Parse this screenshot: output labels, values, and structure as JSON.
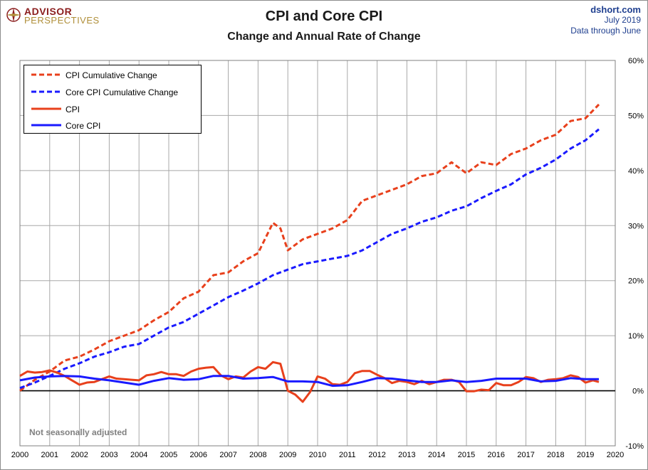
{
  "branding": {
    "logo_line1": "ADVISOR",
    "logo_line2": "PERSPECTIVES"
  },
  "header": {
    "source": "dshort.com",
    "date": "July 2019",
    "data_through": "Data through June"
  },
  "note": "Not seasonally adjusted",
  "chart_data": {
    "type": "line",
    "title": "CPI and Core CPI",
    "subtitle": "Change and Annual Rate of Change",
    "xlabel": "",
    "ylabel": "",
    "xlim": [
      2000,
      2020
    ],
    "ylim": [
      -10,
      60
    ],
    "x_ticks": [
      "2000",
      "2001",
      "2002",
      "2003",
      "2004",
      "2005",
      "2006",
      "2007",
      "2008",
      "2009",
      "2010",
      "2011",
      "2012",
      "2013",
      "2014",
      "2015",
      "2016",
      "2017",
      "2018",
      "2019",
      "2020"
    ],
    "y_ticks": [
      "60%",
      "50%",
      "40%",
      "30%",
      "20%",
      "10%",
      "0%",
      "-10%"
    ],
    "grid": true,
    "legend_position": "top-left",
    "series": [
      {
        "name": "CPI Cumulative Change",
        "color": "#e8401c",
        "style": "dashed",
        "x": [
          2000.0,
          2000.5,
          2001.0,
          2001.5,
          2002.0,
          2002.5,
          2003.0,
          2003.5,
          2004.0,
          2004.5,
          2005.0,
          2005.5,
          2006.0,
          2006.5,
          2007.0,
          2007.5,
          2008.0,
          2008.5,
          2008.75,
          2009.0,
          2009.5,
          2010.0,
          2010.5,
          2011.0,
          2011.5,
          2012.0,
          2012.5,
          2013.0,
          2013.5,
          2014.0,
          2014.5,
          2015.0,
          2015.5,
          2016.0,
          2016.5,
          2017.0,
          2017.5,
          2018.0,
          2018.5,
          2019.0,
          2019.45
        ],
        "y": [
          0.0,
          2.0,
          3.5,
          5.5,
          6.2,
          7.5,
          9.0,
          10.0,
          11.0,
          12.8,
          14.3,
          16.8,
          18.0,
          21.0,
          21.5,
          23.5,
          25.0,
          30.5,
          29.5,
          25.5,
          27.5,
          28.5,
          29.5,
          31.0,
          34.5,
          35.5,
          36.5,
          37.5,
          39.0,
          39.5,
          41.5,
          39.5,
          41.5,
          41.0,
          43.0,
          44.0,
          45.5,
          46.5,
          49.0,
          49.5,
          52.0
        ]
      },
      {
        "name": "Core CPI Cumulative Change",
        "color": "#1a1aff",
        "style": "dashed",
        "x": [
          2000.0,
          2000.5,
          2001.0,
          2001.5,
          2002.0,
          2002.5,
          2003.0,
          2003.5,
          2004.0,
          2004.5,
          2005.0,
          2005.5,
          2006.0,
          2006.5,
          2007.0,
          2007.5,
          2008.0,
          2008.5,
          2009.0,
          2009.5,
          2010.0,
          2010.5,
          2011.0,
          2011.5,
          2012.0,
          2012.5,
          2013.0,
          2013.5,
          2014.0,
          2014.5,
          2015.0,
          2015.5,
          2016.0,
          2016.5,
          2017.0,
          2017.5,
          2018.0,
          2018.5,
          2019.0,
          2019.45
        ],
        "y": [
          0.5,
          1.5,
          2.7,
          4.0,
          5.0,
          6.2,
          7.0,
          8.0,
          8.5,
          10.0,
          11.5,
          12.5,
          14.0,
          15.5,
          17.0,
          18.2,
          19.5,
          21.0,
          22.0,
          23.0,
          23.5,
          24.0,
          24.5,
          25.5,
          27.0,
          28.5,
          29.5,
          30.7,
          31.5,
          32.7,
          33.5,
          35.0,
          36.3,
          37.5,
          39.3,
          40.5,
          42.0,
          44.0,
          45.5,
          47.5
        ]
      },
      {
        "name": "CPI",
        "color": "#e8401c",
        "style": "solid",
        "x": [
          2000.0,
          2000.25,
          2000.5,
          2000.75,
          2001.0,
          2001.25,
          2001.5,
          2001.75,
          2002.0,
          2002.25,
          2002.5,
          2002.75,
          2003.0,
          2003.25,
          2003.5,
          2003.75,
          2004.0,
          2004.25,
          2004.5,
          2004.75,
          2005.0,
          2005.25,
          2005.5,
          2005.75,
          2006.0,
          2006.25,
          2006.5,
          2006.75,
          2007.0,
          2007.25,
          2007.5,
          2007.75,
          2008.0,
          2008.25,
          2008.5,
          2008.75,
          2009.0,
          2009.25,
          2009.5,
          2009.75,
          2010.0,
          2010.25,
          2010.5,
          2010.75,
          2011.0,
          2011.25,
          2011.5,
          2011.75,
          2012.0,
          2012.25,
          2012.5,
          2012.75,
          2013.0,
          2013.25,
          2013.5,
          2013.75,
          2014.0,
          2014.25,
          2014.5,
          2014.75,
          2015.0,
          2015.25,
          2015.5,
          2015.75,
          2016.0,
          2016.25,
          2016.5,
          2016.75,
          2017.0,
          2017.25,
          2017.5,
          2017.75,
          2018.0,
          2018.25,
          2018.5,
          2018.75,
          2019.0,
          2019.25,
          2019.45
        ],
        "y": [
          2.7,
          3.5,
          3.3,
          3.4,
          3.7,
          3.3,
          2.7,
          1.9,
          1.1,
          1.5,
          1.6,
          2.1,
          2.6,
          2.2,
          2.1,
          2.0,
          1.9,
          2.8,
          3.0,
          3.4,
          3.0,
          3.0,
          2.7,
          3.5,
          4.0,
          4.2,
          4.3,
          2.8,
          2.1,
          2.6,
          2.4,
          3.5,
          4.3,
          4.0,
          5.2,
          4.9,
          0.0,
          -0.7,
          -2.0,
          -0.2,
          2.6,
          2.2,
          1.2,
          1.1,
          1.6,
          3.2,
          3.6,
          3.6,
          2.9,
          2.3,
          1.4,
          1.8,
          1.6,
          1.2,
          1.8,
          1.2,
          1.6,
          2.0,
          2.0,
          1.6,
          -0.1,
          -0.1,
          0.2,
          0.1,
          1.4,
          1.0,
          1.0,
          1.6,
          2.5,
          2.3,
          1.6,
          2.0,
          2.1,
          2.3,
          2.8,
          2.5,
          1.5,
          1.9,
          1.6
        ]
      },
      {
        "name": "Core CPI",
        "color": "#1a1aff",
        "style": "solid",
        "x": [
          2000.0,
          2000.5,
          2001.0,
          2001.5,
          2002.0,
          2002.5,
          2003.0,
          2003.5,
          2004.0,
          2004.5,
          2005.0,
          2005.5,
          2006.0,
          2006.5,
          2007.0,
          2007.5,
          2008.0,
          2008.5,
          2009.0,
          2009.5,
          2010.0,
          2010.5,
          2011.0,
          2011.5,
          2012.0,
          2012.5,
          2013.0,
          2013.5,
          2014.0,
          2014.5,
          2015.0,
          2015.5,
          2016.0,
          2016.5,
          2017.0,
          2017.5,
          2018.0,
          2018.5,
          2019.0,
          2019.45
        ],
        "y": [
          1.9,
          2.4,
          2.6,
          2.7,
          2.6,
          2.2,
          1.9,
          1.5,
          1.1,
          1.8,
          2.3,
          2.0,
          2.1,
          2.7,
          2.7,
          2.2,
          2.3,
          2.5,
          1.7,
          1.7,
          1.6,
          0.9,
          1.0,
          1.6,
          2.3,
          2.2,
          1.9,
          1.6,
          1.6,
          1.9,
          1.6,
          1.8,
          2.2,
          2.2,
          2.2,
          1.7,
          1.8,
          2.3,
          2.1,
          2.1
        ]
      }
    ]
  }
}
